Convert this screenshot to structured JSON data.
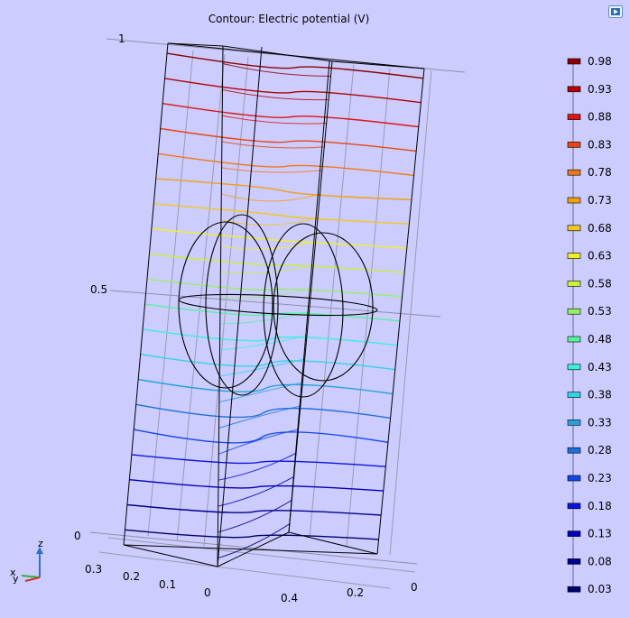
{
  "title": "Contour: Electric potential (V)",
  "icons": {
    "corner": "legend-toggle-icon",
    "triad": "axis-triad-icon"
  },
  "triad_labels": {
    "x": "x",
    "y": "y",
    "z": "z"
  },
  "chart_data": {
    "type": "contour",
    "title": "Contour: Electric potential (V)",
    "quantity": "Electric potential (V)",
    "z_ticks": [
      "0",
      "0.5",
      "1"
    ],
    "y_ticks": [
      "0.3",
      "0.2",
      "0.1",
      "0"
    ],
    "x_ticks": [
      "0.4",
      "0.2",
      "0"
    ],
    "levels": [
      0.03,
      0.08,
      0.13,
      0.18,
      0.23,
      0.28,
      0.33,
      0.38,
      0.43,
      0.48,
      0.53,
      0.58,
      0.63,
      0.68,
      0.73,
      0.78,
      0.83,
      0.88,
      0.93,
      0.98
    ],
    "level_labels": [
      "0.98",
      "0.93",
      "0.88",
      "0.83",
      "0.78",
      "0.73",
      "0.68",
      "0.63",
      "0.58",
      "0.53",
      "0.48",
      "0.43",
      "0.38",
      "0.33",
      "0.28",
      "0.23",
      "0.18",
      "0.13",
      "0.08",
      "0.03"
    ],
    "colors": [
      "#00006e",
      "#00008c",
      "#0000b4",
      "#0a14dc",
      "#1446e6",
      "#1e6edc",
      "#28a0dc",
      "#32d2e6",
      "#3cf0dc",
      "#5af0a0",
      "#96f064",
      "#c8f03c",
      "#f0f028",
      "#f0c81e",
      "#f0a014",
      "#f07814",
      "#e64614",
      "#dc1414",
      "#b40000",
      "#8c0000"
    ],
    "legend_placement": "right",
    "grid": true
  }
}
